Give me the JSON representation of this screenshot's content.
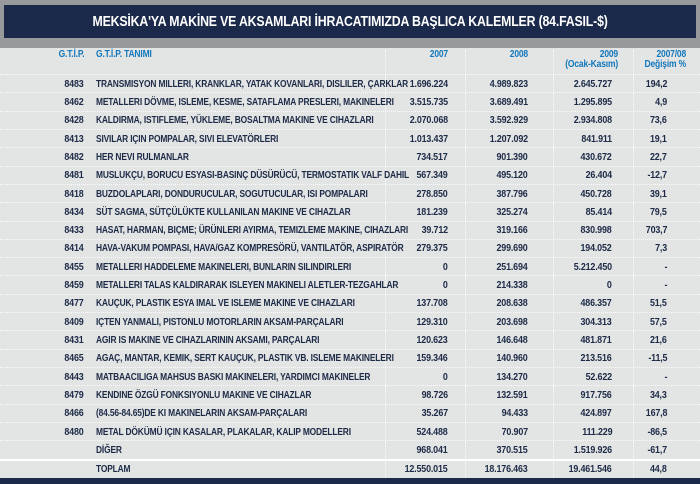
{
  "title": "MEKSİKA'YA MAKİNE VE AKSAMLARI İHRACATIMIZDA BAŞLICA KALEMLER (84.FASIL-$)",
  "colors": {
    "title_bar_navy": "#1b2a4a",
    "frame_gray": "#97999a",
    "table_background": "#e3e4e4",
    "header_blue": "#1478bc",
    "row_text_navy": "#1d2b47"
  },
  "table": {
    "headers": {
      "code": "G.T.İ.P.",
      "name": "G.T.İ.P. TANIMI",
      "y2007": "2007",
      "y2008": "2008",
      "y2009_line1": "2009",
      "y2009_line2": "(Ocak-Kasım)",
      "change_line1": "2007/08",
      "change_line2": "Değişim %"
    },
    "rows": [
      {
        "code": "8483",
        "name": "TRANSMISYON MILLERI, KRANKLAR, YATAK KOVANLARI, DISLILER, ÇARKLAR",
        "y2007": "1.696.224",
        "y2008": "4.989.823",
        "y2009": "2.645.727",
        "change": "194,2"
      },
      {
        "code": "8462",
        "name": "METALLERI DÖVME, ISLEME, KESME, SATAFLAMA PRESLERI, MAKINELERI",
        "y2007": "3.515.735",
        "y2008": "3.689.491",
        "y2009": "1.295.895",
        "change": "4,9"
      },
      {
        "code": "8428",
        "name": "KALDIRMA, ISTIFLEME, YÜKLEME, BOSALTMA MAKINE VE CIHAZLARI",
        "y2007": "2.070.068",
        "y2008": "3.592.929",
        "y2009": "2.934.808",
        "change": "73,6"
      },
      {
        "code": "8413",
        "name": "SIVILAR IÇIN POMPALAR, SIVI ELEVATÖRLERI",
        "y2007": "1.013.437",
        "y2008": "1.207.092",
        "y2009": "841.911",
        "change": "19,1"
      },
      {
        "code": "8482",
        "name": "HER NEVI RULMANLAR",
        "y2007": "734.517",
        "y2008": "901.390",
        "y2009": "430.672",
        "change": "22,7"
      },
      {
        "code": "8481",
        "name": "MUSLUKÇU, BORUCU ESYASI-BASINÇ DÜSÜRÜCÜ, TERMOSTATIK VALF DAHIL",
        "y2007": "567.349",
        "y2008": "495.120",
        "y2009": "26.404",
        "change": "-12,7"
      },
      {
        "code": "8418",
        "name": "BUZDOLAPLARI, DONDURUCULAR, SOGUTUCULAR, ISI POMPALARI",
        "y2007": "278.850",
        "y2008": "387.796",
        "y2009": "450.728",
        "change": "39,1"
      },
      {
        "code": "8434",
        "name": "SÜT SAGMA, SÜTÇÜLÜKTE KULLANILAN MAKINE VE CIHAZLAR",
        "y2007": "181.239",
        "y2008": "325.274",
        "y2009": "85.414",
        "change": "79,5"
      },
      {
        "code": "8433",
        "name": "HASAT, HARMAN, BIÇME; ÜRÜNLERI AYIRMA, TEMIZLEME MAKINE, CIHAZLARI",
        "y2007": "39.712",
        "y2008": "319.166",
        "y2009": "830.998",
        "change": "703,7"
      },
      {
        "code": "8414",
        "name": "HAVA-VAKUM POMPASI, HAVA/GAZ KOMPRESÖRÜ, VANTILATÖR, ASPIRATÖR",
        "y2007": "279.375",
        "y2008": "299.690",
        "y2009": "194.052",
        "change": "7,3"
      },
      {
        "code": "8455",
        "name": "METALLERI HADDELEME MAKINELERI, BUNLARIN SILINDIRLERI",
        "y2007": "0",
        "y2008": "251.694",
        "y2009": "5.212.450",
        "change": "-"
      },
      {
        "code": "8459",
        "name": "METALLERI TALAS KALDIRARAK ISLEYEN MAKINELI ALETLER-TEZGAHLAR",
        "y2007": "0",
        "y2008": "214.338",
        "y2009": "0",
        "change": "-"
      },
      {
        "code": "8477",
        "name": "KAUÇUK, PLASTIK ESYA IMAL VE ISLEME MAKINE VE CIHAZLARI",
        "y2007": "137.708",
        "y2008": "208.638",
        "y2009": "486.357",
        "change": "51,5"
      },
      {
        "code": "8409",
        "name": "IÇTEN YANMALI, PISTONLU MOTORLARIN AKSAM-PARÇALARI",
        "y2007": "129.310",
        "y2008": "203.698",
        "y2009": "304.313",
        "change": "57,5"
      },
      {
        "code": "8431",
        "name": "AGIR IS MAKINE VE CIHAZLARININ AKSAMI, PARÇALARI",
        "y2007": "120.623",
        "y2008": "146.648",
        "y2009": "481.871",
        "change": "21,6"
      },
      {
        "code": "8465",
        "name": "AGAÇ, MANTAR, KEMIK, SERT KAUÇUK, PLASTIK VB. ISLEME MAKINELERI",
        "y2007": "159.346",
        "y2008": "140.960",
        "y2009": "213.516",
        "change": "-11,5"
      },
      {
        "code": "8443",
        "name": "MATBAACILIGA MAHSUS BASKI MAKINELERI, YARDIMCI MAKINELER",
        "y2007": "0",
        "y2008": "134.270",
        "y2009": "52.622",
        "change": "-"
      },
      {
        "code": "8479",
        "name": "KENDINE ÖZGÜ FONKSIYONLU MAKINE VE CIHAZLAR",
        "y2007": "98.726",
        "y2008": "132.591",
        "y2009": "917.756",
        "change": "34,3"
      },
      {
        "code": "8466",
        "name": "(84.56-84.65)DE KI MAKINELARIN AKSAM-PARÇALARI",
        "y2007": "35.267",
        "y2008": "94.433",
        "y2009": "424.897",
        "change": "167,8"
      },
      {
        "code": "8480",
        "name": "METAL DÖKÜMÜ IÇIN KASALAR, PLAKALAR, KALIP MODELLERI",
        "y2007": "524.488",
        "y2008": "70.907",
        "y2009": "111.229",
        "change": "-86,5"
      },
      {
        "code": "",
        "name": "DİĞER",
        "y2007": "968.041",
        "y2008": "370.515",
        "y2009": "1.519.926",
        "change": "-61,7"
      },
      {
        "code": "",
        "name": "TOPLAM",
        "y2007": "12.550.015",
        "y2008": "18.176.463",
        "y2009": "19.461.546",
        "change": "44,8"
      }
    ]
  }
}
